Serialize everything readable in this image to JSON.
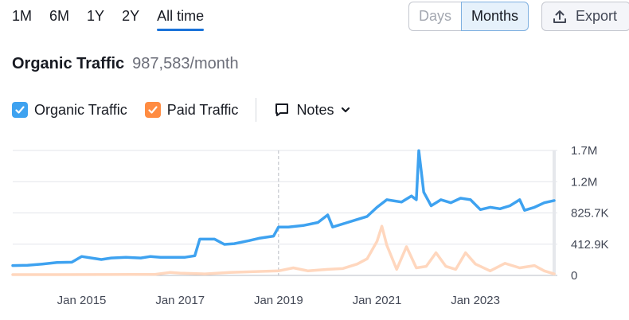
{
  "range_tabs": [
    {
      "label": "1M",
      "active": false
    },
    {
      "label": "6M",
      "active": false
    },
    {
      "label": "1Y",
      "active": false
    },
    {
      "label": "2Y",
      "active": false
    },
    {
      "label": "All time",
      "active": true
    }
  ],
  "granularity": {
    "days_label": "Days",
    "months_label": "Months",
    "selected": "Months"
  },
  "export_label": "Export",
  "header": {
    "title": "Organic Traffic",
    "value": "987,583/month"
  },
  "legend": {
    "organic_label": "Organic Traffic",
    "organic_color": "#3ea2f0",
    "paid_label": "Paid Traffic",
    "paid_color": "#ff8c42",
    "notes_label": "Notes"
  },
  "chart_data": {
    "type": "line",
    "y_ticks": [
      "1.7M",
      "1.2M",
      "825.7K",
      "412.9K",
      "0"
    ],
    "y_tick_values": [
      1651600,
      1238700,
      825700,
      412900,
      0
    ],
    "ylim": [
      0,
      1651600
    ],
    "x_ticks": [
      "Jan 2015",
      "Jan 2017",
      "Jan 2019",
      "Jan 2021",
      "Jan 2023"
    ],
    "x_tick_years": [
      2015,
      2017,
      2019,
      2021,
      2023
    ],
    "x_range_years": [
      2013.6,
      2024.6
    ],
    "marker_line_year": 2019,
    "grid": true,
    "series": [
      {
        "name": "Organic Traffic",
        "color": "#3ea2f0",
        "points": [
          [
            2013.6,
            130000
          ],
          [
            2013.9,
            135000
          ],
          [
            2014.2,
            150000
          ],
          [
            2014.5,
            170000
          ],
          [
            2014.8,
            175000
          ],
          [
            2015.0,
            250000
          ],
          [
            2015.2,
            230000
          ],
          [
            2015.4,
            210000
          ],
          [
            2015.6,
            230000
          ],
          [
            2015.9,
            240000
          ],
          [
            2016.2,
            230000
          ],
          [
            2016.4,
            250000
          ],
          [
            2016.6,
            240000
          ],
          [
            2016.9,
            240000
          ],
          [
            2017.1,
            240000
          ],
          [
            2017.3,
            260000
          ],
          [
            2017.4,
            480000
          ],
          [
            2017.7,
            480000
          ],
          [
            2017.9,
            410000
          ],
          [
            2018.1,
            420000
          ],
          [
            2018.4,
            460000
          ],
          [
            2018.6,
            490000
          ],
          [
            2018.9,
            520000
          ],
          [
            2019.0,
            640000
          ],
          [
            2019.2,
            640000
          ],
          [
            2019.5,
            660000
          ],
          [
            2019.8,
            700000
          ],
          [
            2020.0,
            800000
          ],
          [
            2020.1,
            640000
          ],
          [
            2020.4,
            700000
          ],
          [
            2020.6,
            740000
          ],
          [
            2020.8,
            780000
          ],
          [
            2021.0,
            900000
          ],
          [
            2021.2,
            1000000
          ],
          [
            2021.5,
            970000
          ],
          [
            2021.7,
            1050000
          ],
          [
            2021.8,
            1000000
          ],
          [
            2021.85,
            1650000
          ],
          [
            2021.95,
            1100000
          ],
          [
            2022.1,
            920000
          ],
          [
            2022.3,
            1000000
          ],
          [
            2022.5,
            960000
          ],
          [
            2022.7,
            1020000
          ],
          [
            2022.9,
            1000000
          ],
          [
            2023.1,
            870000
          ],
          [
            2023.3,
            900000
          ],
          [
            2023.5,
            880000
          ],
          [
            2023.7,
            920000
          ],
          [
            2023.9,
            1000000
          ],
          [
            2024.0,
            860000
          ],
          [
            2024.2,
            900000
          ],
          [
            2024.4,
            960000
          ],
          [
            2024.6,
            990000
          ]
        ]
      },
      {
        "name": "Paid Traffic",
        "color": "#ffd7be",
        "points": [
          [
            2013.6,
            10000
          ],
          [
            2014.5,
            10000
          ],
          [
            2015.5,
            12000
          ],
          [
            2016.5,
            15000
          ],
          [
            2016.8,
            40000
          ],
          [
            2017.0,
            30000
          ],
          [
            2017.5,
            20000
          ],
          [
            2018.0,
            40000
          ],
          [
            2018.5,
            50000
          ],
          [
            2019.0,
            60000
          ],
          [
            2019.3,
            100000
          ],
          [
            2019.6,
            60000
          ],
          [
            2020.0,
            80000
          ],
          [
            2020.3,
            90000
          ],
          [
            2020.6,
            150000
          ],
          [
            2020.8,
            220000
          ],
          [
            2021.0,
            450000
          ],
          [
            2021.1,
            650000
          ],
          [
            2021.2,
            400000
          ],
          [
            2021.4,
            80000
          ],
          [
            2021.6,
            380000
          ],
          [
            2021.8,
            100000
          ],
          [
            2022.0,
            120000
          ],
          [
            2022.2,
            300000
          ],
          [
            2022.4,
            120000
          ],
          [
            2022.6,
            80000
          ],
          [
            2022.8,
            300000
          ],
          [
            2023.0,
            150000
          ],
          [
            2023.3,
            60000
          ],
          [
            2023.6,
            160000
          ],
          [
            2023.9,
            100000
          ],
          [
            2024.2,
            130000
          ],
          [
            2024.4,
            60000
          ],
          [
            2024.6,
            20000
          ]
        ]
      }
    ]
  }
}
